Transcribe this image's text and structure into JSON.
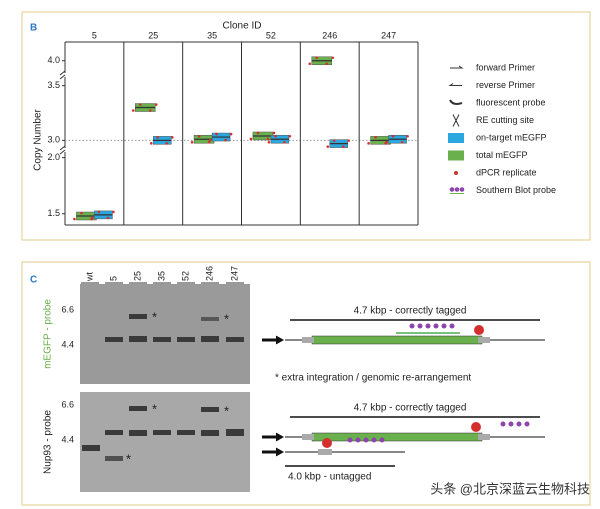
{
  "panel_b_label": "B",
  "chart_data": {
    "type": "box",
    "x_label": "Clone ID",
    "y_label": "Copy Number",
    "categories": [
      "5",
      "25",
      "35",
      "52",
      "246",
      "247"
    ],
    "series": [
      {
        "name": "total mEGFP",
        "color": "#6ab04c",
        "values": [
          1.48,
          3.3,
          3.01,
          3.04,
          4.0,
          3.0
        ]
      },
      {
        "name": "on-target mEGFP",
        "color": "#2aa7df",
        "values": [
          1.49,
          3.0,
          3.03,
          3.01,
          2.97,
          3.01
        ]
      }
    ],
    "y_segments": [
      {
        "ylim": [
          1.4,
          2.05
        ],
        "yticks": [
          1.5,
          {
            "value": 2,
            "label": "2.0"
          }
        ]
      },
      {
        "ylim": [
          2.93,
          3.57
        ],
        "yticks": [
          {
            "value": 3,
            "label": "3.0"
          },
          3.5
        ]
      },
      {
        "ylim": [
          3.91,
          4.15
        ],
        "yticks": [
          {
            "value": 4,
            "label": "4.0"
          }
        ]
      }
    ],
    "reference_line": 3,
    "legend_position": "right",
    "extra_legend": [
      "forward Primer",
      "reverse Primer",
      "fluorescent probe",
      "RE cutting site",
      "dPCR replicate",
      "Southern Blot probe"
    ]
  },
  "panel_c": {
    "label": "C",
    "lanes": [
      "wt",
      "5",
      "25",
      "35",
      "52",
      "246",
      "247"
    ],
    "gels": [
      {
        "probe": "mEGFP - probe",
        "ticks": [
          "6.6",
          "4.4"
        ]
      },
      {
        "probe": "Nup93 - probe",
        "ticks": [
          "6.6",
          "4.4"
        ]
      }
    ],
    "asterisk": "*",
    "correct_label": "4.7 kbp - correctly tagged",
    "extra_note": "* extra integration / genomic re-arrangement",
    "untagged_label": "4.0 kbp - untagged"
  },
  "watermark": "头条 @北京深蓝云生物科技"
}
